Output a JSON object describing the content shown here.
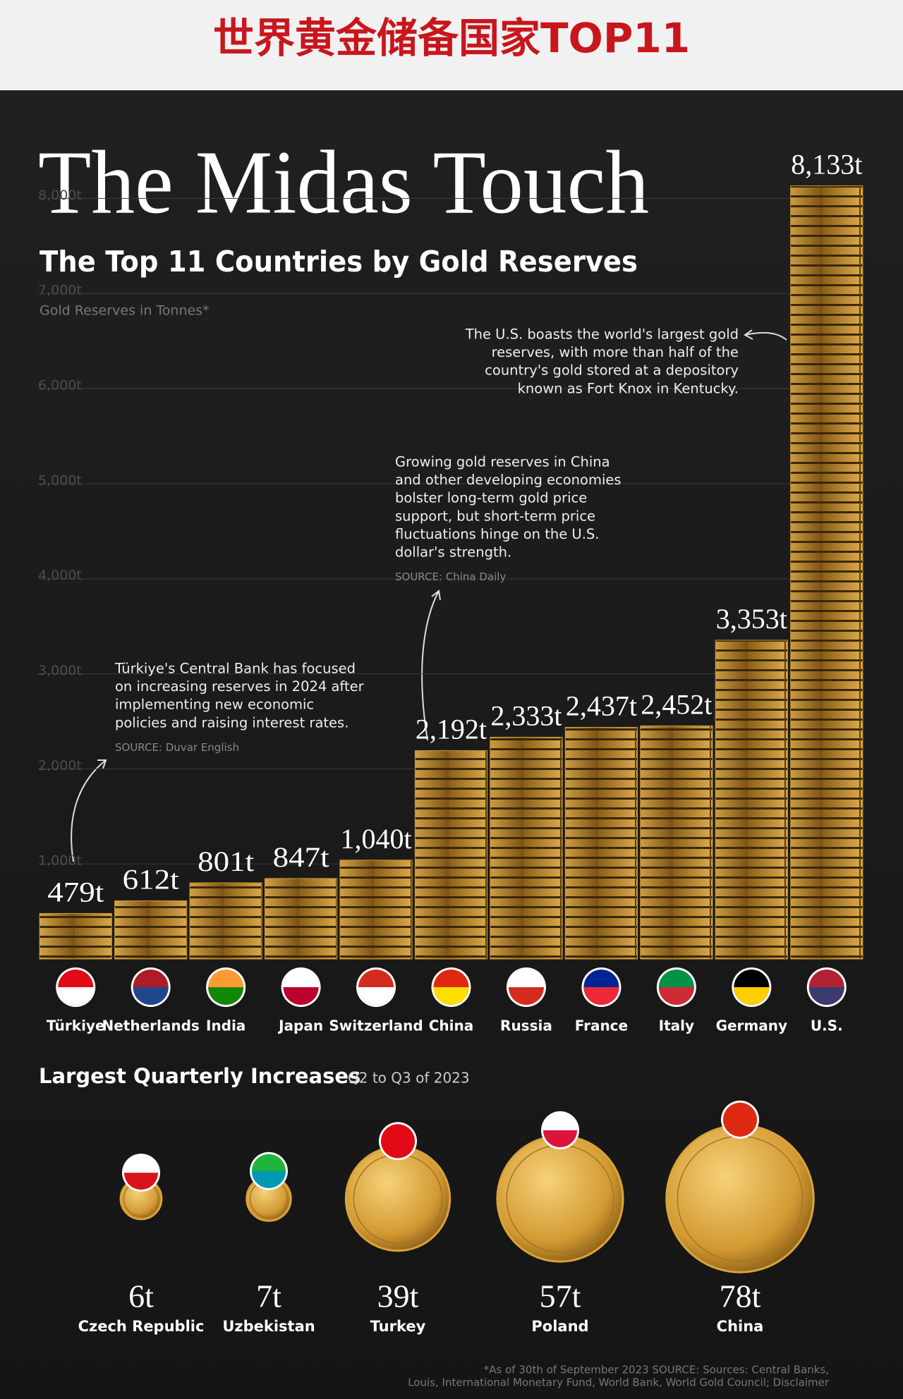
{
  "header": {
    "title": "世界黄金储备国家TOP11"
  },
  "chart_data": [
    {
      "type": "bar",
      "title": "The Midas Touch",
      "subtitle": "The Top 11 Countries by Gold Reserves",
      "y_label": "Gold Reserves in Tonnes*",
      "categories": [
        "Türkiye",
        "Netherlands",
        "India",
        "Japan",
        "Switzerland",
        "China",
        "Russia",
        "France",
        "Italy",
        "Germany",
        "U.S."
      ],
      "values": [
        479,
        612,
        801,
        847,
        1040,
        2192,
        2333,
        2437,
        2452,
        3353,
        8133
      ],
      "value_labels": [
        "479t",
        "612t",
        "801t",
        "847t",
        "1,040t",
        "2,192t",
        "2,333t",
        "2,437t",
        "2,452t",
        "3,353t",
        "8,133t"
      ],
      "color": "#c9982f",
      "ylim": [
        0,
        8500
      ],
      "yticks": [
        {
          "value": 1000,
          "label": "1,000t"
        },
        {
          "value": 2000,
          "label": "2,000t"
        },
        {
          "value": 3000,
          "label": "3,000t"
        },
        {
          "value": 4000,
          "label": "4,000t"
        },
        {
          "value": 5000,
          "label": "5,000t"
        },
        {
          "value": 6000,
          "label": "6,000t"
        },
        {
          "value": 7000,
          "label": "7,000t"
        },
        {
          "value": 8000,
          "label": "8,000t"
        }
      ],
      "grid": true,
      "annotations": [
        {
          "lines": [
            "The U.S. boasts the world's largest gold",
            "reserves, with more than half of the",
            "country's gold stored at a depository",
            "known as Fort Knox in Kentucky."
          ]
        },
        {
          "lines": [
            "Growing gold reserves in China",
            "and other developing economies",
            "bolster long-term gold price",
            "support, but short-term price",
            "fluctuations hinge on the U.S.",
            "dollar's strength."
          ],
          "source": "SOURCE: China Daily"
        },
        {
          "lines": [
            "Türkiye's Central Bank has focused",
            "on increasing reserves in 2024 after",
            "implementing new economic",
            "policies and raising interest rates."
          ],
          "source": "SOURCE: Duvar English"
        }
      ]
    },
    {
      "type": "bubble",
      "title": "Largest Quarterly Increases",
      "subtitle": "Q2 to Q3 of 2023",
      "categories": [
        "Czech Republic",
        "Uzbekistan",
        "Turkey",
        "Poland",
        "China"
      ],
      "values": [
        6,
        7,
        39,
        57,
        78
      ],
      "value_labels": [
        "6t",
        "7t",
        "39t",
        "57t",
        "78t"
      ],
      "color": "#d9a43a"
    }
  ],
  "footnote": [
    "*As of 30th of September 2023 SOURCE: Sources: Central Banks,",
    "Louis, International Monetary Fund, World Bank, World Gold Council; Disclaimer"
  ]
}
